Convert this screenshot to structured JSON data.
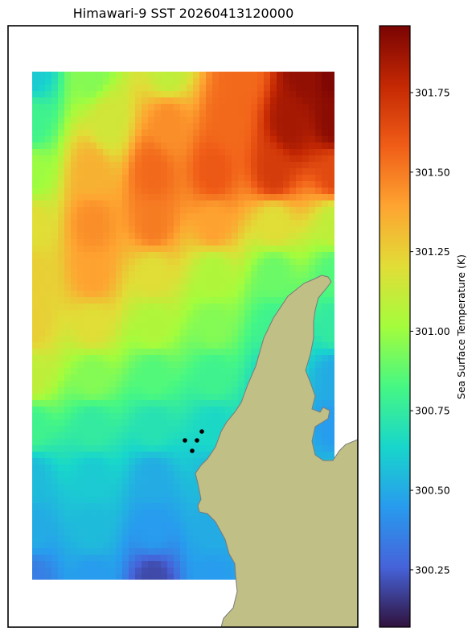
{
  "chart_data": {
    "type": "heatmap",
    "title": "Himawari-9 SST 20260413120000",
    "colorbar": {
      "label": "Sea Surface Temperature (K)",
      "vmin": 300.07,
      "vmax": 301.96,
      "ticks": [
        300.25,
        300.5,
        300.75,
        301.0,
        301.25,
        301.5,
        301.75
      ],
      "tick_labels": [
        "300.25",
        "300.50",
        "300.75",
        "301.00",
        "301.25",
        "301.50",
        "301.75"
      ],
      "colormap": "turbo"
    },
    "field": {
      "description_points": "Approximate SST samples (K) at relative grid positions across the data domain",
      "samples": [
        [
          0.0,
          0.0,
          300.6
        ],
        [
          0.2,
          0.0,
          300.95
        ],
        [
          0.45,
          0.0,
          301.1
        ],
        [
          0.7,
          0.0,
          301.55
        ],
        [
          0.9,
          0.0,
          301.9
        ],
        [
          1.0,
          0.0,
          301.95
        ],
        [
          0.0,
          0.1,
          300.8
        ],
        [
          0.25,
          0.1,
          301.15
        ],
        [
          0.45,
          0.1,
          301.45
        ],
        [
          0.65,
          0.1,
          301.55
        ],
        [
          0.85,
          0.1,
          301.85
        ],
        [
          1.0,
          0.1,
          301.92
        ],
        [
          0.0,
          0.2,
          301.0
        ],
        [
          0.2,
          0.2,
          301.35
        ],
        [
          0.4,
          0.2,
          301.55
        ],
        [
          0.6,
          0.2,
          301.6
        ],
        [
          0.8,
          0.2,
          301.7
        ],
        [
          1.0,
          0.2,
          301.65
        ],
        [
          0.0,
          0.3,
          301.2
        ],
        [
          0.2,
          0.3,
          301.45
        ],
        [
          0.4,
          0.3,
          301.5
        ],
        [
          0.6,
          0.3,
          301.4
        ],
        [
          0.8,
          0.3,
          301.2
        ],
        [
          1.0,
          0.3,
          301.1
        ],
        [
          0.0,
          0.4,
          301.25
        ],
        [
          0.2,
          0.4,
          301.4
        ],
        [
          0.4,
          0.4,
          301.2
        ],
        [
          0.6,
          0.4,
          301.05
        ],
        [
          0.8,
          0.4,
          300.9
        ],
        [
          1.0,
          0.4,
          300.85
        ],
        [
          0.0,
          0.5,
          301.25
        ],
        [
          0.2,
          0.5,
          301.2
        ],
        [
          0.4,
          0.5,
          301.05
        ],
        [
          0.6,
          0.5,
          300.95
        ],
        [
          0.8,
          0.5,
          300.8
        ],
        [
          1.0,
          0.5,
          300.75
        ],
        [
          0.0,
          0.6,
          301.1
        ],
        [
          0.2,
          0.6,
          300.95
        ],
        [
          0.4,
          0.6,
          300.85
        ],
        [
          0.6,
          0.6,
          300.8
        ],
        [
          0.8,
          0.6,
          300.65
        ],
        [
          1.0,
          0.6,
          300.5
        ],
        [
          0.0,
          0.7,
          300.8
        ],
        [
          0.2,
          0.7,
          300.75
        ],
        [
          0.4,
          0.7,
          300.7
        ],
        [
          0.6,
          0.7,
          300.65
        ],
        [
          0.8,
          0.7,
          300.55
        ],
        [
          1.0,
          0.7,
          300.45
        ],
        [
          0.0,
          0.8,
          300.55
        ],
        [
          0.2,
          0.8,
          300.6
        ],
        [
          0.4,
          0.8,
          300.5
        ],
        [
          0.6,
          0.8,
          300.55
        ],
        [
          0.8,
          0.8,
          300.6
        ],
        [
          1.0,
          0.8,
          300.55
        ],
        [
          0.0,
          0.9,
          300.5
        ],
        [
          0.2,
          0.9,
          300.55
        ],
        [
          0.4,
          0.9,
          300.45
        ],
        [
          0.6,
          0.9,
          300.5
        ],
        [
          0.8,
          0.9,
          300.55
        ],
        [
          1.0,
          0.9,
          300.55
        ],
        [
          0.0,
          1.0,
          300.35
        ],
        [
          0.2,
          1.0,
          300.45
        ],
        [
          0.4,
          1.0,
          300.2
        ],
        [
          0.6,
          1.0,
          300.45
        ],
        [
          0.8,
          1.0,
          300.5
        ],
        [
          1.0,
          1.0,
          300.55
        ]
      ]
    },
    "markers": {
      "type": "scatter",
      "count": 4,
      "color": "#000000"
    },
    "land_color": "#bfbf86",
    "grid": false
  }
}
